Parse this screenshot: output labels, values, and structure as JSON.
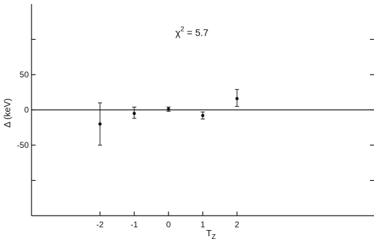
{
  "chart_data": {
    "type": "scatter",
    "title": "",
    "xlabel": "T",
    "xlabel_subscript": "Z",
    "ylabel": "Δ (keV)",
    "xlim": [
      -4,
      6
    ],
    "ylim": [
      -150,
      150
    ],
    "x_ticks": [
      -2,
      -1,
      0,
      1,
      2
    ],
    "x_tick_labels": [
      "-2",
      "-1",
      "0",
      "1",
      "2"
    ],
    "y_ticks": [
      50,
      0,
      -50
    ],
    "y_tick_labels": [
      "50",
      "0",
      "-50"
    ],
    "y_minor_ticks": [
      100,
      -100
    ],
    "reference_line": 0,
    "grid": false,
    "annotation": {
      "base": "χ",
      "superscript": "2",
      "rest": " = 5.7",
      "x": 0.2,
      "y": 105
    },
    "series": [
      {
        "x": [
          -2,
          -1,
          0,
          1,
          2
        ],
        "y": [
          -20,
          -5,
          1,
          -8,
          16
        ],
        "yerr_low": [
          30,
          7,
          3,
          5,
          11
        ],
        "yerr_high": [
          30,
          9,
          3,
          5,
          13
        ]
      }
    ]
  }
}
